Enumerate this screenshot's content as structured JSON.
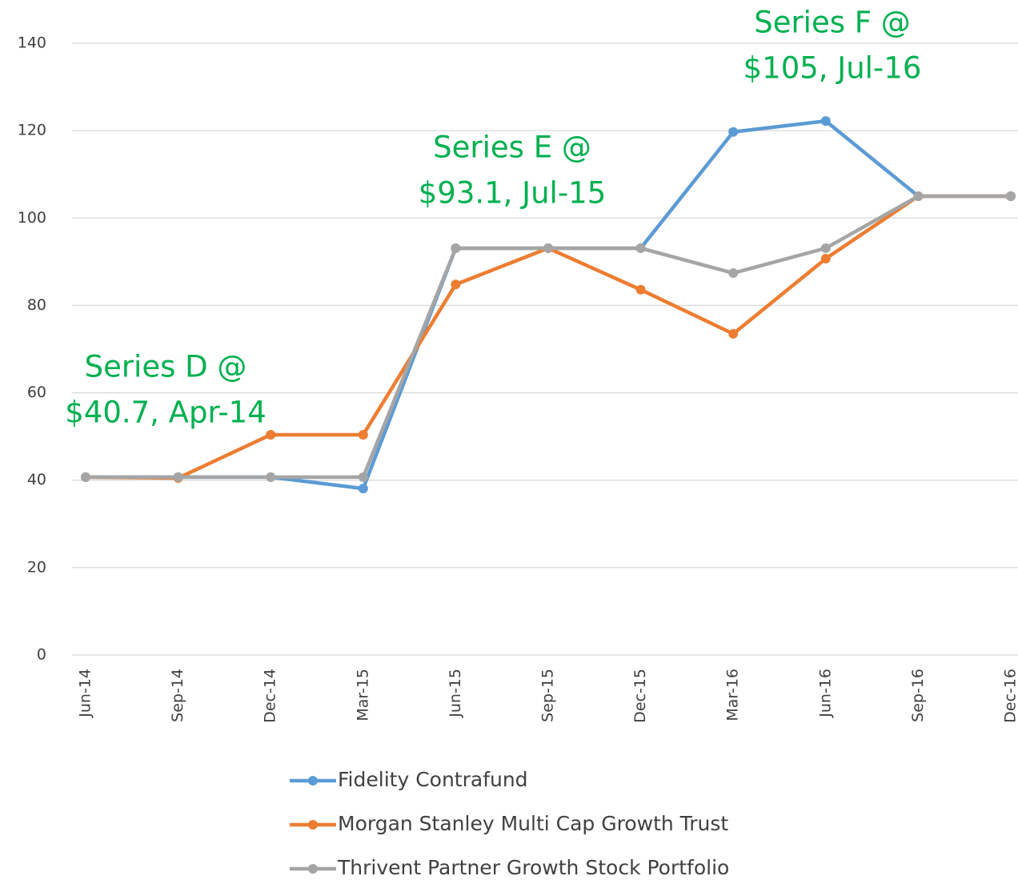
{
  "chart_data": {
    "type": "line",
    "categories": [
      "Jun-14",
      "Sep-14",
      "Dec-14",
      "Mar-15",
      "Jun-15",
      "Sep-15",
      "Dec-15",
      "Mar-16",
      "Jun-16",
      "Sep-16",
      "Dec-16"
    ],
    "series": [
      {
        "name": "Fidelity Contrafund",
        "color": "#5b9bd5",
        "values": [
          40.7,
          40.7,
          40.7,
          38.1,
          93.1,
          93.1,
          93.1,
          119.7,
          122.2,
          105,
          105
        ]
      },
      {
        "name": "Morgan Stanley Multi Cap Growth Trust",
        "color": "#ed7d31",
        "values": [
          40.7,
          40.5,
          50.4,
          50.4,
          84.8,
          93.1,
          83.6,
          73.5,
          90.7,
          105,
          105
        ]
      },
      {
        "name": "Thrivent Partner Growth Stock Portfolio",
        "color": "#a5a5a5",
        "values": [
          40.7,
          40.7,
          40.7,
          40.7,
          93.1,
          93.1,
          93.1,
          87.4,
          93.1,
          105,
          105
        ]
      }
    ],
    "ylim": [
      0,
      140
    ],
    "yticks": [
      0,
      20,
      40,
      60,
      80,
      100,
      120,
      140
    ],
    "grid": true,
    "legend": "bottom",
    "annotations": [
      {
        "lines": [
          "Series D @",
          "$40.7, Apr-14"
        ],
        "color": "#00b050"
      },
      {
        "lines": [
          "Series E @",
          "$93.1, Jul-15"
        ],
        "color": "#00b050"
      },
      {
        "lines": [
          "Series F @",
          "$105, Jul-16"
        ],
        "color": "#00b050"
      }
    ]
  }
}
